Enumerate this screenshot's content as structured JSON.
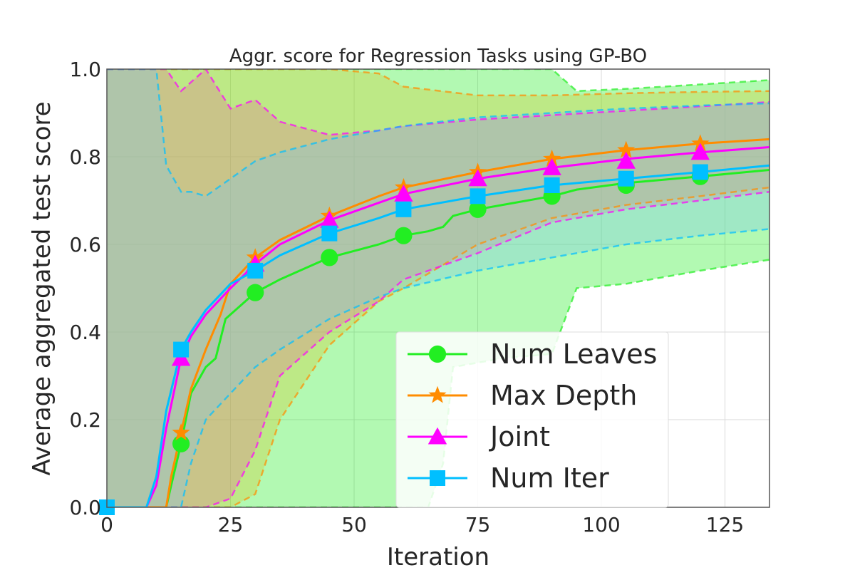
{
  "chart_data": {
    "type": "line",
    "title": "Aggr. score for Regression Tasks using GP-BO",
    "xlabel": "Iteration",
    "ylabel": "Average aggregated test score",
    "xlim": [
      0,
      134
    ],
    "ylim": [
      0,
      1
    ],
    "x_ticks": [
      "0",
      "25",
      "50",
      "75",
      "100",
      "125"
    ],
    "y_ticks": [
      "0.0",
      "0.2",
      "0.4",
      "0.6",
      "0.8",
      "1.0"
    ],
    "grid": true,
    "legend_position": "lower-right",
    "series": [
      {
        "name": "Num Leaves",
        "color": "#22ee22",
        "band_color": "#22ee22",
        "marker": "circle",
        "x": [
          0,
          12,
          13,
          15,
          17,
          20,
          22,
          24,
          25,
          30,
          35,
          45,
          55,
          60,
          65,
          68,
          70,
          75,
          80,
          90,
          95,
          105,
          120,
          134
        ],
        "mean": [
          0,
          0,
          0.05,
          0.145,
          0.26,
          0.32,
          0.34,
          0.43,
          0.44,
          0.49,
          0.52,
          0.57,
          0.6,
          0.62,
          0.63,
          0.64,
          0.665,
          0.68,
          0.69,
          0.71,
          0.725,
          0.74,
          0.755,
          0.77
        ],
        "upper": [
          1,
          1,
          1,
          1,
          1,
          1,
          1,
          1,
          1,
          1,
          1,
          1,
          1,
          1,
          1,
          1,
          1,
          1,
          1,
          1,
          0.95,
          0.955,
          0.965,
          0.975
        ],
        "lower": [
          0,
          0,
          0,
          0,
          0,
          0,
          0,
          0,
          0,
          0,
          0,
          0,
          0,
          0,
          0,
          0.1,
          0.32,
          0.33,
          0.34,
          0.35,
          0.5,
          0.51,
          0.54,
          0.565
        ],
        "markers_x": [
          15,
          30,
          45,
          60,
          75,
          90,
          105,
          120
        ],
        "markers_y": [
          0.145,
          0.49,
          0.57,
          0.62,
          0.68,
          0.71,
          0.735,
          0.755
        ]
      },
      {
        "name": "Max Depth",
        "color": "#ff8c00",
        "band_color": "#d2cc33",
        "marker": "star",
        "x": [
          0,
          12,
          13,
          15,
          17,
          20,
          23,
          25,
          30,
          35,
          45,
          55,
          60,
          75,
          90,
          105,
          120,
          134
        ],
        "mean": [
          0,
          0,
          0.07,
          0.17,
          0.27,
          0.36,
          0.44,
          0.51,
          0.57,
          0.61,
          0.665,
          0.71,
          0.73,
          0.765,
          0.795,
          0.815,
          0.83,
          0.84
        ],
        "upper": [
          1,
          1,
          1,
          1,
          1,
          1,
          1,
          1,
          1,
          1,
          1,
          0.99,
          0.96,
          0.94,
          0.94,
          0.945,
          0.948,
          0.95
        ],
        "lower": [
          0,
          0,
          0,
          0,
          0,
          0,
          0,
          0,
          0.03,
          0.2,
          0.37,
          0.47,
          0.5,
          0.6,
          0.66,
          0.69,
          0.71,
          0.73
        ],
        "markers_x": [
          15,
          30,
          45,
          60,
          75,
          90,
          105,
          120
        ],
        "markers_y": [
          0.17,
          0.57,
          0.665,
          0.73,
          0.765,
          0.795,
          0.815,
          0.83
        ]
      },
      {
        "name": "Joint",
        "color": "#ff00ff",
        "band_color": "#e08090",
        "marker": "triangle",
        "x": [
          0,
          8,
          10,
          12,
          15,
          17,
          20,
          25,
          30,
          35,
          45,
          55,
          60,
          75,
          90,
          105,
          120,
          134
        ],
        "mean": [
          0,
          0,
          0.05,
          0.18,
          0.34,
          0.39,
          0.44,
          0.5,
          0.555,
          0.6,
          0.655,
          0.695,
          0.715,
          0.75,
          0.775,
          0.795,
          0.81,
          0.822
        ],
        "upper": [
          1,
          1,
          1,
          1,
          0.95,
          0.97,
          1,
          0.91,
          0.93,
          0.88,
          0.85,
          0.86,
          0.87,
          0.885,
          0.895,
          0.905,
          0.915,
          0.925
        ],
        "lower": [
          0,
          0,
          0,
          0,
          0,
          0,
          0,
          0.02,
          0.13,
          0.3,
          0.4,
          0.47,
          0.52,
          0.58,
          0.65,
          0.68,
          0.7,
          0.72
        ],
        "markers_x": [
          15,
          30,
          45,
          60,
          75,
          90,
          105,
          120
        ],
        "markers_y": [
          0.34,
          0.555,
          0.655,
          0.715,
          0.75,
          0.775,
          0.79,
          0.81
        ]
      },
      {
        "name": "Num Iter",
        "color": "#00bfff",
        "band_color": "#7fc8e8",
        "marker": "square",
        "x": [
          0,
          8,
          10,
          12,
          15,
          17,
          20,
          25,
          30,
          35,
          45,
          55,
          60,
          75,
          90,
          105,
          120,
          134
        ],
        "mean": [
          0,
          0,
          0.07,
          0.22,
          0.36,
          0.4,
          0.45,
          0.51,
          0.54,
          0.575,
          0.625,
          0.66,
          0.68,
          0.71,
          0.735,
          0.75,
          0.765,
          0.78
        ],
        "upper": [
          1,
          1,
          1,
          0.78,
          0.72,
          0.72,
          0.71,
          0.75,
          0.79,
          0.81,
          0.84,
          0.86,
          0.87,
          0.89,
          0.9,
          0.91,
          0.917,
          0.922
        ],
        "lower": [
          0,
          0,
          0,
          0,
          0,
          0.1,
          0.2,
          0.26,
          0.32,
          0.36,
          0.43,
          0.48,
          0.5,
          0.54,
          0.57,
          0.6,
          0.62,
          0.635
        ],
        "markers_x": [
          0,
          15,
          30,
          45,
          60,
          75,
          90,
          105,
          120
        ],
        "markers_y": [
          0,
          0.36,
          0.54,
          0.625,
          0.68,
          0.71,
          0.735,
          0.75,
          0.765
        ]
      }
    ]
  }
}
